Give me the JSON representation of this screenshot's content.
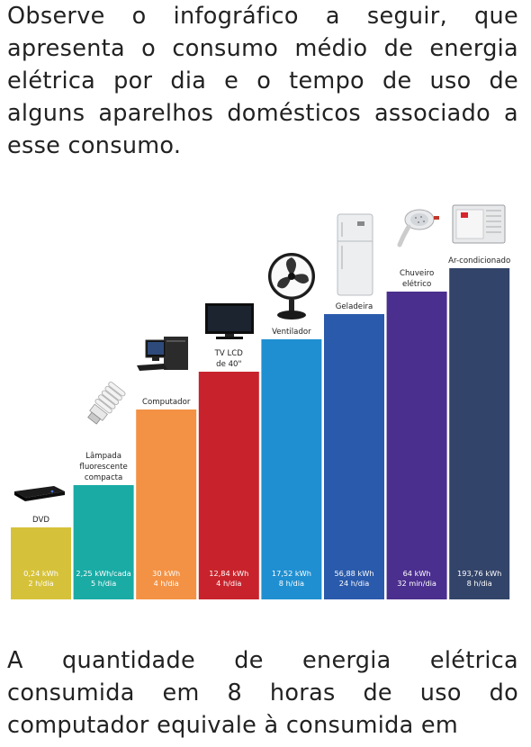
{
  "intro_text": "Observe o infográfico a seguir, que apresenta o consumo médio de energia elétrica por dia e o tempo de uso de alguns aparelhos domésticos associado a esse consumo.",
  "question_text": "A quantidade de energia elétrica consumida em 8 horas de uso do computador equivale à consumida em",
  "chart_data": {
    "type": "bar",
    "title": "",
    "xlabel": "",
    "ylabel": "",
    "categories": [
      [
        "DVD"
      ],
      [
        "Lâmpada",
        "fluorescente",
        "compacta"
      ],
      [
        "Computador"
      ],
      [
        "TV LCD",
        "de 40\""
      ],
      [
        "Ventilador"
      ],
      [
        "Geladeira"
      ],
      [
        "Chuveiro",
        "elétrico"
      ],
      [
        "Ar-condicionado"
      ]
    ],
    "values": [
      0.24,
      2.25,
      30,
      12.84,
      17.52,
      56.88,
      64,
      193.76
    ],
    "value_labels": [
      "0,24 kWh",
      "2,25 kWh/cada",
      "30 kWh",
      "12,84 kWh",
      "17,52 kWh",
      "56,88 kWh",
      "64 kWh",
      "193,76 kWh"
    ],
    "usage_labels": [
      "2 h/dia",
      "5 h/dia",
      "4 h/dia",
      "4 h/dia",
      "8 h/dia",
      "24 h/dia",
      "32 min/dia",
      "8 h/dia"
    ],
    "colors": [
      "#d6c23a",
      "#1aaba5",
      "#f39244",
      "#c8232c",
      "#1f8fd1",
      "#2a5aab",
      "#4b2f8e",
      "#33446a"
    ],
    "note": "",
    "icons": [
      "dvd-player-icon",
      "cfl-lamp-icon",
      "computer-icon",
      "lcd-tv-icon",
      "fan-icon",
      "fridge-icon",
      "shower-icon",
      "air-conditioner-icon"
    ]
  }
}
